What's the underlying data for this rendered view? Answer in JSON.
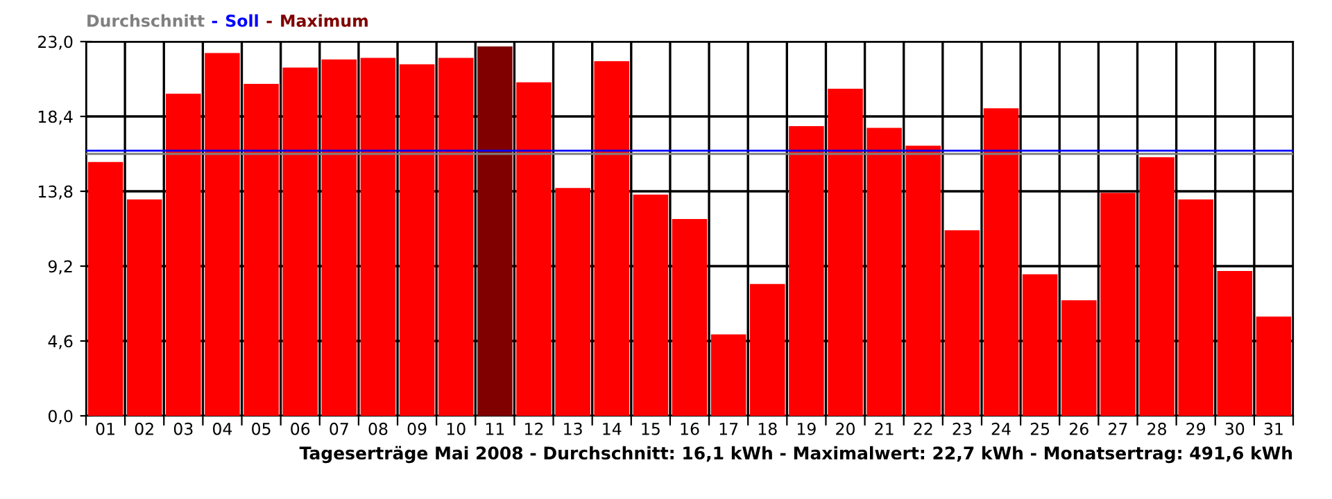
{
  "chart_data": {
    "type": "bar",
    "xlabel": "Tageserträge Mai 2008 - Durchschnitt: 16,1 kWh - Maximalwert: 22,7 kWh - Monatsertrag: 491,6 kWh",
    "categories": [
      "01",
      "02",
      "03",
      "04",
      "05",
      "06",
      "07",
      "08",
      "09",
      "10",
      "11",
      "12",
      "13",
      "14",
      "15",
      "16",
      "17",
      "18",
      "19",
      "20",
      "21",
      "22",
      "23",
      "24",
      "25",
      "26",
      "27",
      "28",
      "29",
      "30",
      "31"
    ],
    "values": [
      15.6,
      13.3,
      19.8,
      22.3,
      20.4,
      21.4,
      21.9,
      22.0,
      21.6,
      22.0,
      22.7,
      20.5,
      14.0,
      21.8,
      13.6,
      12.1,
      5.0,
      8.1,
      17.8,
      20.1,
      17.7,
      16.6,
      11.4,
      18.9,
      8.7,
      7.1,
      13.7,
      15.9,
      13.3,
      8.9,
      6.1
    ],
    "colors": [
      "#ff0000",
      "#ff0000",
      "#ff0000",
      "#ff0000",
      "#ff0000",
      "#ff0000",
      "#ff0000",
      "#ff0000",
      "#ff0000",
      "#ff0000",
      "#800000",
      "#ff0000",
      "#ff0000",
      "#ff0000",
      "#ff0000",
      "#ff0000",
      "#ff0000",
      "#ff0000",
      "#ff0000",
      "#ff0000",
      "#ff0000",
      "#ff0000",
      "#ff0000",
      "#ff0000",
      "#ff0000",
      "#ff0000",
      "#ff0000",
      "#ff0000",
      "#ff0000",
      "#ff0000",
      "#ff0000"
    ],
    "ylim": [
      0,
      23
    ],
    "yticks": [
      {
        "value": 0,
        "label": "0,0"
      },
      {
        "value": 4.6,
        "label": "4,6"
      },
      {
        "value": 9.2,
        "label": "9,2"
      },
      {
        "value": 13.8,
        "label": "13,8"
      },
      {
        "value": 18.4,
        "label": "18,4"
      },
      {
        "value": 23,
        "label": "23,0"
      }
    ],
    "ref_lines": [
      {
        "axis": "y",
        "value": 16.1,
        "label": "Durchschnitt",
        "color": "#808080"
      },
      {
        "axis": "y",
        "value": 16.3,
        "label": "Soll",
        "color": "#0000ff"
      }
    ],
    "annotations": [
      "-",
      "-",
      "Maximum"
    ],
    "grid": true,
    "legend": "top left"
  }
}
